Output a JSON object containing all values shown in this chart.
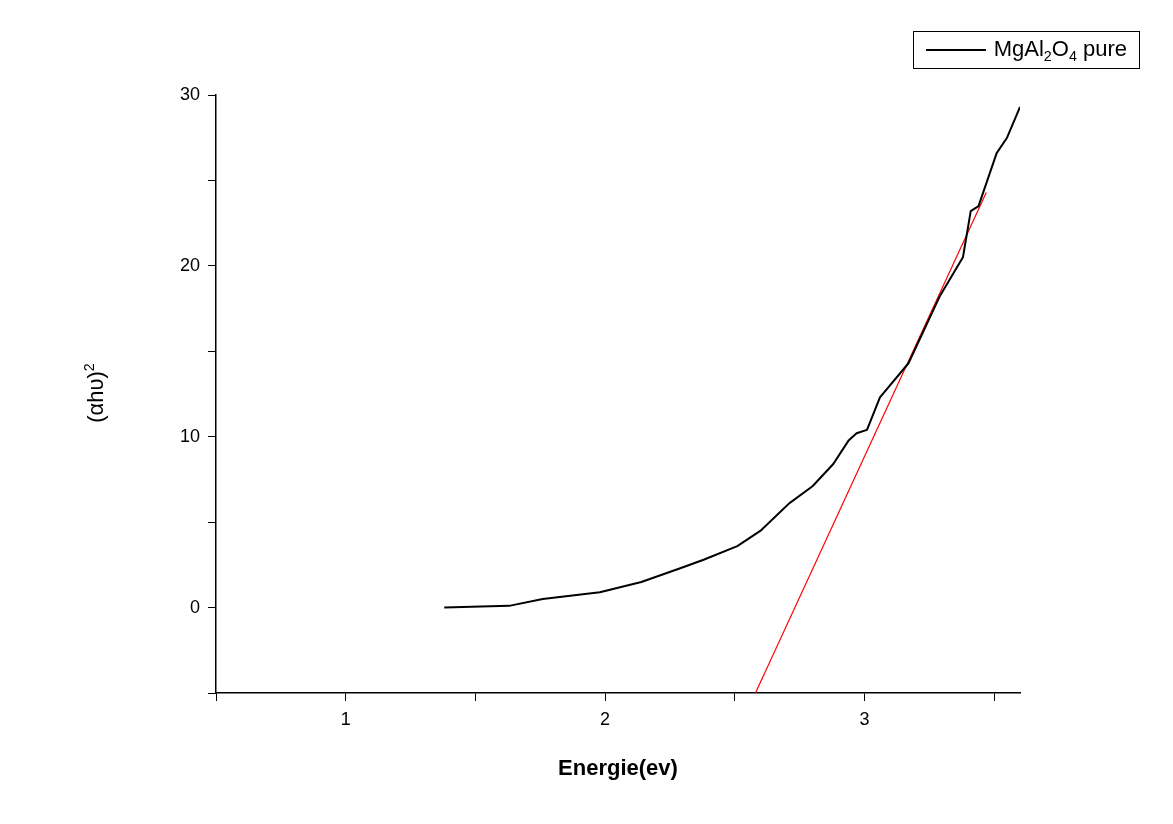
{
  "chart_data": {
    "type": "line",
    "xlabel": "Energie(ev)",
    "ylabel": "(αhυ)$^{2}$",
    "xlim": [
      0.5,
      3.6
    ],
    "xticks": [
      {
        "value": 0.5,
        "label": null
      },
      1,
      {
        "value": 1.5,
        "label": null
      },
      2,
      {
        "value": 2.5,
        "label": null
      },
      3,
      {
        "value": 3.5,
        "label": null
      }
    ],
    "ylim": [
      -5,
      30
    ],
    "yticks": [
      {
        "value": -5,
        "label": null
      },
      0,
      {
        "value": 5,
        "label": null
      },
      10,
      {
        "value": 15,
        "label": null
      },
      20,
      {
        "value": 25,
        "label": null
      },
      30
    ],
    "series": [
      {
        "name": "MgAl$_{2}$O$_{4}$ pure",
        "color": "#000000",
        "x": [
          1.38,
          1.63,
          1.76,
          1.98,
          2.14,
          2.29,
          2.38,
          2.51,
          2.6,
          2.71,
          2.8,
          2.88,
          2.94,
          2.97,
          3.01,
          3.06,
          3.17,
          3.29,
          3.38,
          3.41,
          3.44,
          3.51,
          3.55,
          3.6
        ],
        "values": [
          0,
          0.1,
          0.5,
          0.9,
          1.5,
          2.3,
          2.8,
          3.6,
          4.5,
          6.1,
          7.1,
          8.4,
          9.8,
          10.2,
          10.4,
          12.3,
          14.3,
          18.2,
          20.5,
          23.2,
          23.5,
          26.6,
          27.5,
          29.3
        ]
      },
      {
        "type": "line",
        "color": "#ff0000",
        "x": [
          2.58,
          3.47
        ],
        "values": [
          -5,
          24.3
        ]
      }
    ],
    "legend": "top right",
    "marker": "none",
    "grid": false
  }
}
